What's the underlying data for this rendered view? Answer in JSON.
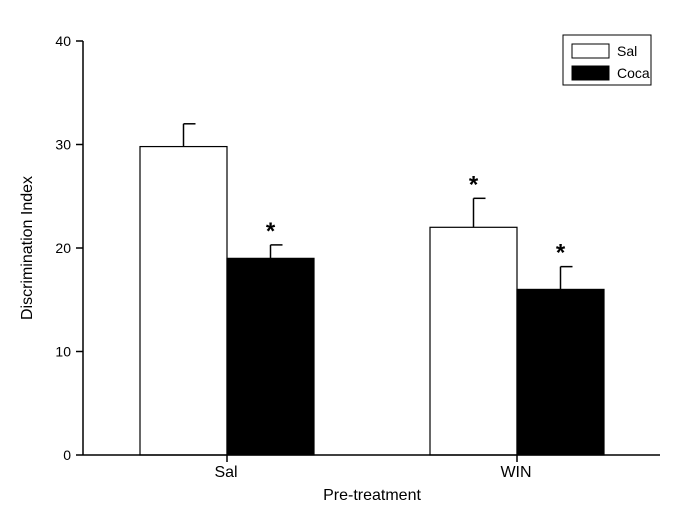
{
  "chart_data": {
    "type": "bar",
    "title": "",
    "xlabel": "Pre-treatment",
    "ylabel": "Discrimination Index",
    "ylim": [
      0,
      40
    ],
    "yticks": [
      "0",
      "10",
      "20",
      "30",
      "40"
    ],
    "categories": [
      "Sal",
      "WIN"
    ],
    "series": [
      {
        "name": "Sal",
        "color": "#ffffff",
        "values": [
          29.8,
          22.0
        ],
        "errors": [
          2.2,
          2.8
        ],
        "significance": [
          "",
          "*"
        ]
      },
      {
        "name": "Coca",
        "color": "#000000",
        "values": [
          19.0,
          16.0
        ],
        "errors": [
          1.3,
          2.2
        ],
        "significance": [
          "*",
          "*"
        ]
      }
    ],
    "legend_position": "top-right",
    "grid": false
  }
}
